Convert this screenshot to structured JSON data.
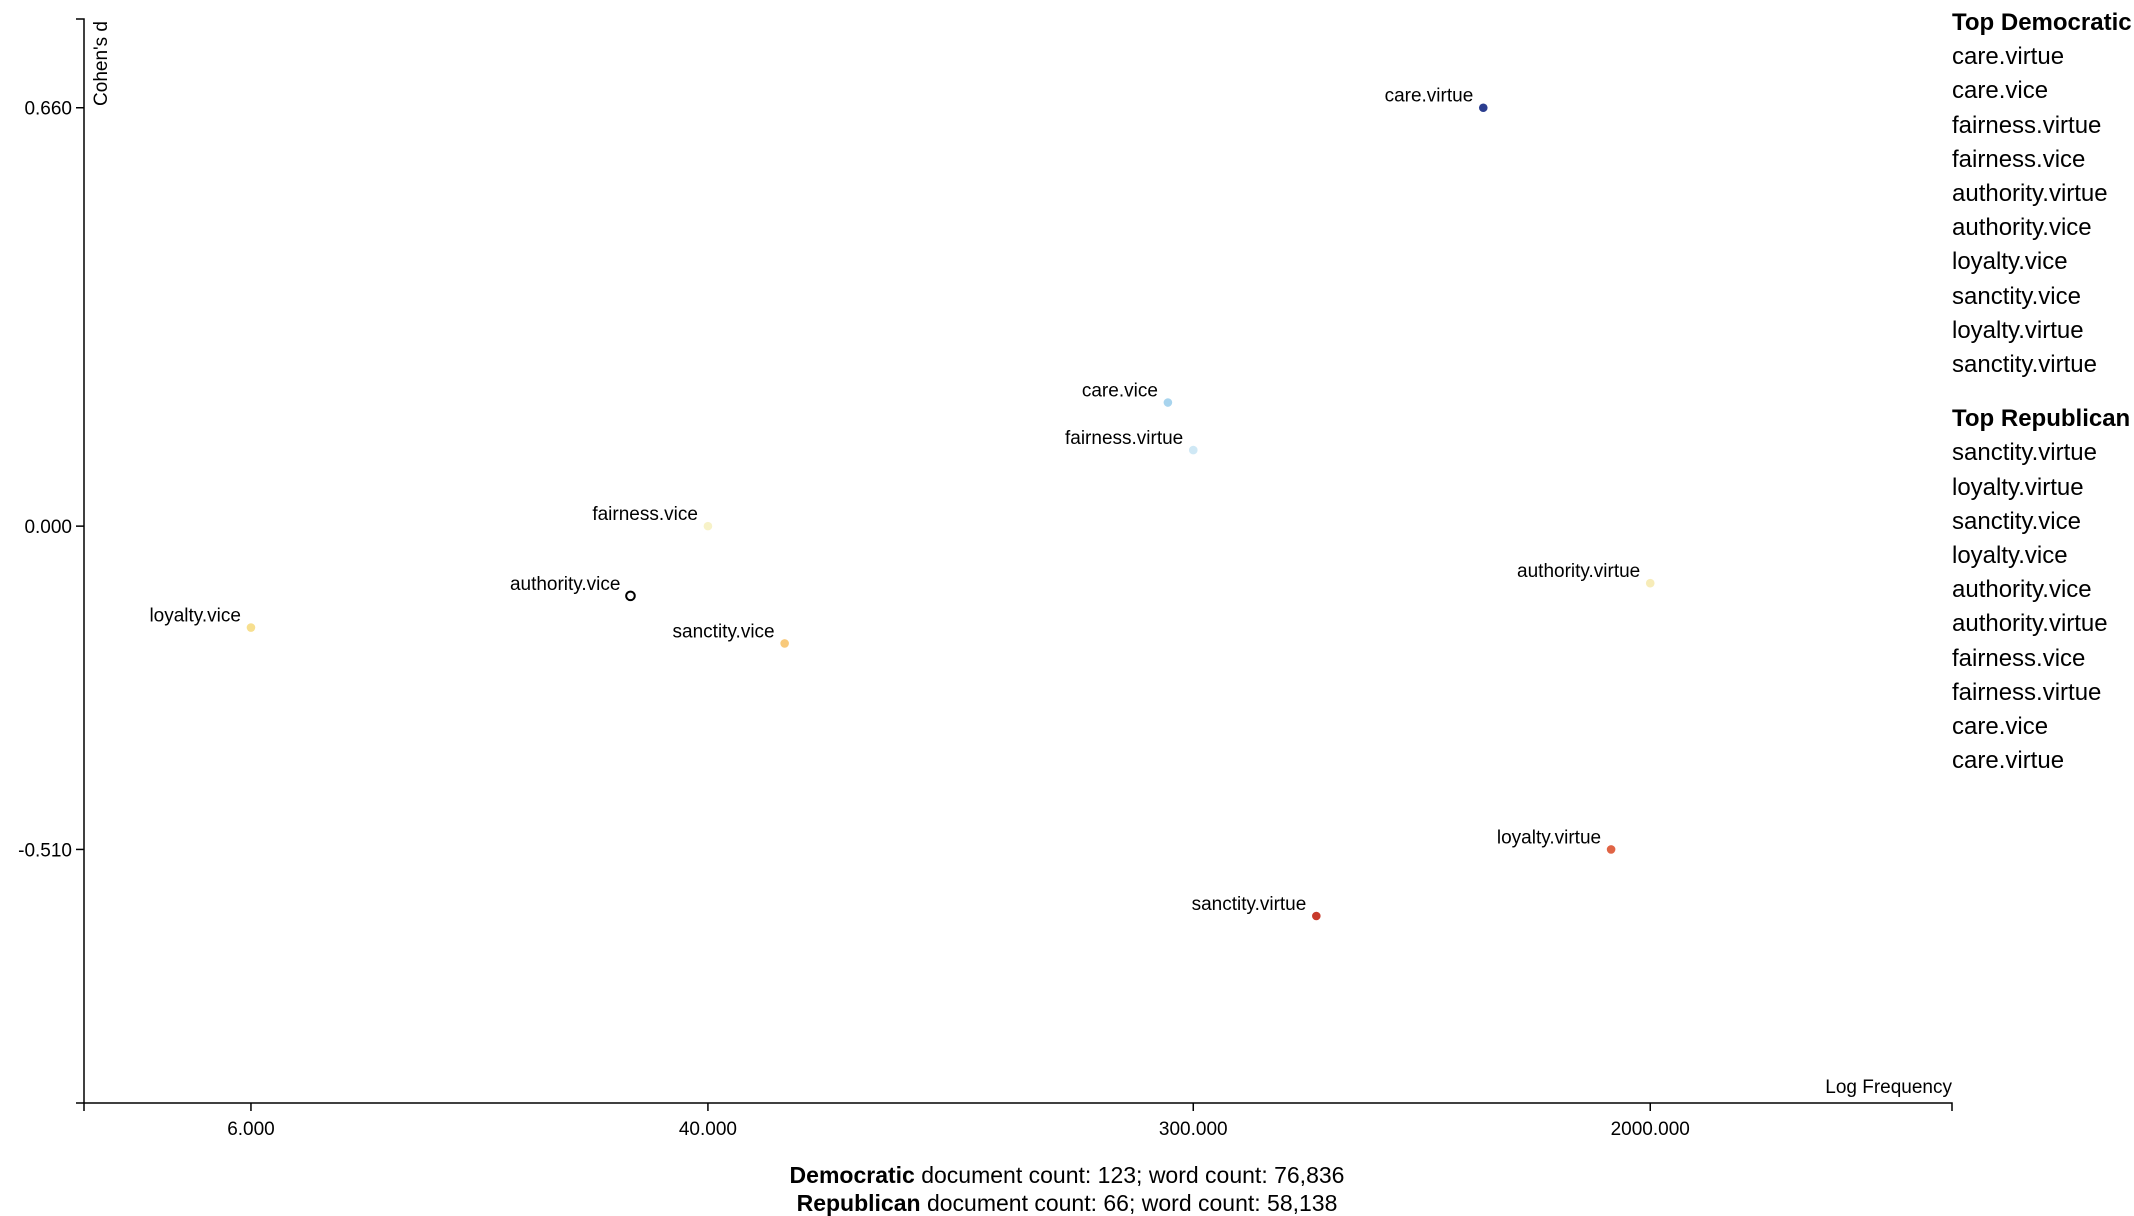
{
  "chart_data": {
    "type": "scatter",
    "xlabel": "Log Frequency",
    "ylabel": "Cohen's d",
    "x_scale": "log",
    "xlim": [
      3,
      7000
    ],
    "ylim": [
      -0.91,
      0.8
    ],
    "x_ticks": [
      {
        "value": 6,
        "label": "6.000"
      },
      {
        "value": 40,
        "label": "40.000"
      },
      {
        "value": 300,
        "label": "300.000"
      },
      {
        "value": 2000,
        "label": "2000.000"
      }
    ],
    "y_ticks": [
      {
        "value": 0.66,
        "label": "0.660"
      },
      {
        "value": 0.0,
        "label": "0.000"
      },
      {
        "value": -0.51,
        "label": "-0.510"
      }
    ],
    "points": [
      {
        "label": "care.virtue",
        "x": 1000,
        "y": 0.66,
        "color": "#2b3d8f",
        "hollow": false
      },
      {
        "label": "care.vice",
        "x": 270,
        "y": 0.195,
        "color": "#a8d4ee",
        "hollow": false
      },
      {
        "label": "fairness.virtue",
        "x": 300,
        "y": 0.12,
        "color": "#cfe8f5",
        "hollow": false
      },
      {
        "label": "fairness.vice",
        "x": 40,
        "y": 0.0,
        "color": "#f7f2c8",
        "hollow": false
      },
      {
        "label": "authority.vice",
        "x": 29,
        "y": -0.11,
        "color": "#000000",
        "hollow": true
      },
      {
        "label": "loyalty.vice",
        "x": 6,
        "y": -0.16,
        "color": "#f7df8f",
        "hollow": false
      },
      {
        "label": "sanctity.vice",
        "x": 55,
        "y": -0.185,
        "color": "#f8c97a",
        "hollow": false
      },
      {
        "label": "authority.virtue",
        "x": 2000,
        "y": -0.09,
        "color": "#f7ecb8",
        "hollow": false
      },
      {
        "label": "loyalty.virtue",
        "x": 1700,
        "y": -0.51,
        "color": "#e06445",
        "hollow": false
      },
      {
        "label": "sanctity.virtue",
        "x": 500,
        "y": -0.615,
        "color": "#c83a2b",
        "hollow": false
      }
    ]
  },
  "legend": {
    "democratic": {
      "title": "Top Democratic",
      "items": [
        "care.virtue",
        "care.vice",
        "fairness.virtue",
        "fairness.vice",
        "authority.virtue",
        "authority.vice",
        "loyalty.vice",
        "sanctity.vice",
        "loyalty.virtue",
        "sanctity.virtue"
      ]
    },
    "republican": {
      "title": "Top Republican",
      "items": [
        "sanctity.virtue",
        "loyalty.virtue",
        "sanctity.vice",
        "loyalty.vice",
        "authority.vice",
        "authority.virtue",
        "fairness.vice",
        "fairness.virtue",
        "care.vice",
        "care.virtue"
      ]
    }
  },
  "footer": {
    "democratic": {
      "party": "Democratic",
      "text": " document count: 123; word count: 76,836"
    },
    "republican": {
      "party": "Republican",
      "text": " document count: 66; word count: 58,138"
    }
  }
}
